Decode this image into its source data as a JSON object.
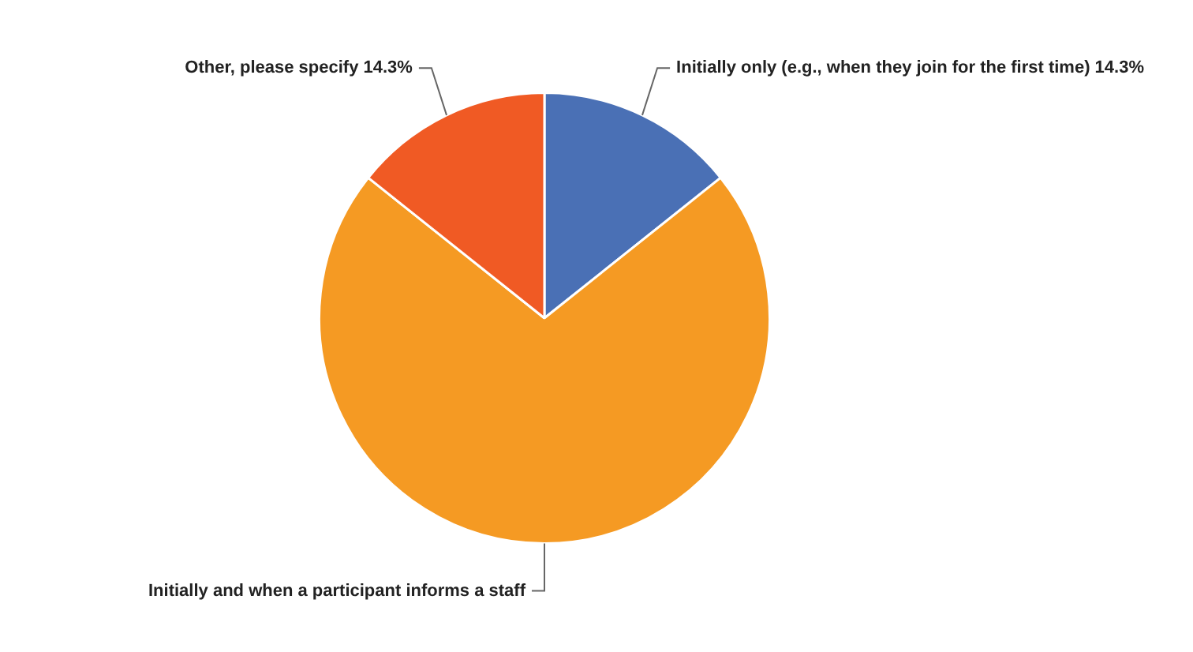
{
  "chart_data": {
    "type": "pie",
    "categories": [
      "Initially only (e.g., when they join for the first time)",
      "Initially and when a participant informs a staff",
      "Other, please specify"
    ],
    "values": [
      14.3,
      71.4,
      14.3
    ],
    "value_labels": [
      "14.3%",
      null,
      "14.3%"
    ],
    "colors": [
      "#4a70b5",
      "#f59a23",
      "#f05a24"
    ],
    "legend": false
  }
}
